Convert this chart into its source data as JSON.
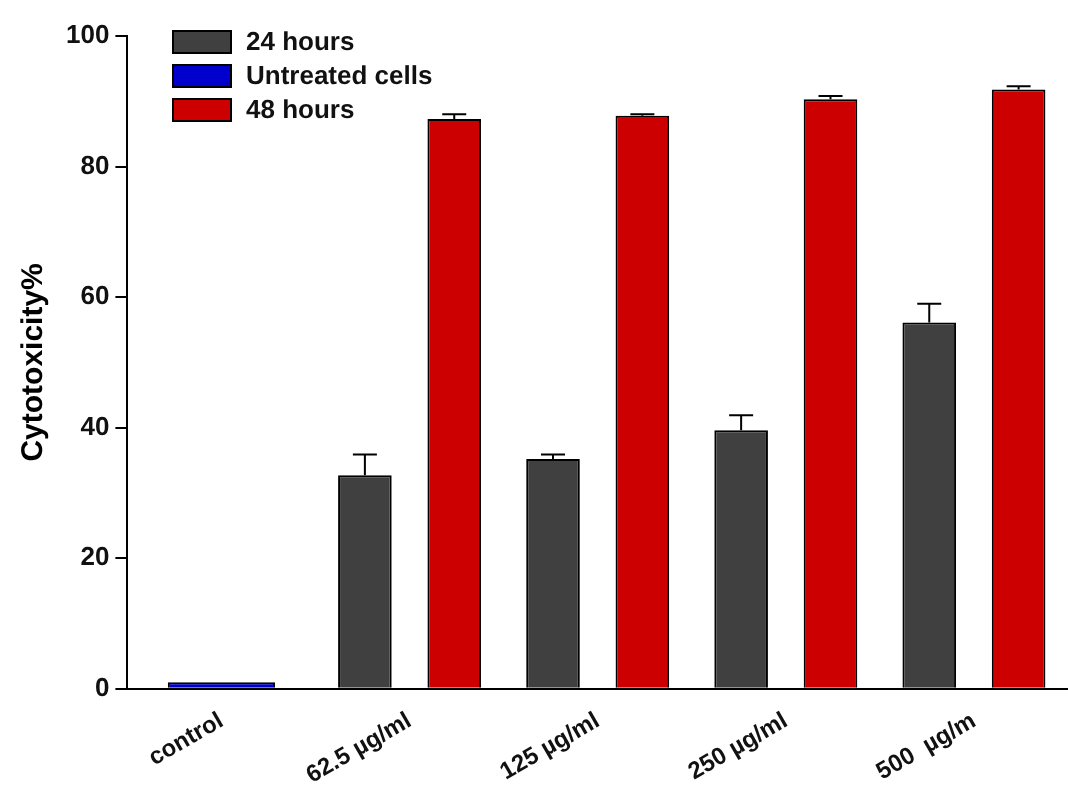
{
  "chart_data": {
    "type": "bar",
    "ylabel": "Cytotoxicity%",
    "categories": [
      "control",
      "62.5 µg/ml",
      "125 µg/ml",
      "250 µg/ml",
      "500  µg/m"
    ],
    "series": [
      {
        "name": "24 hours",
        "color": "#404040",
        "values": [
          null,
          32.7,
          35.2,
          39.6,
          56.1
        ],
        "errors": [
          null,
          [
            32.7,
            35.9
          ],
          [
            35.2,
            35.9
          ],
          [
            39.6,
            41.9
          ],
          [
            56.1,
            59.0
          ]
        ]
      },
      {
        "name": "Untreated cells",
        "color": "#0000cc",
        "values": [
          1.0,
          null,
          null,
          null,
          null
        ]
      },
      {
        "name": "48 hours",
        "color": "#cc0000",
        "values": [
          null,
          87.3,
          87.8,
          90.3,
          91.8
        ],
        "errors": [
          null,
          [
            87.3,
            88.0
          ],
          [
            87.8,
            88.0
          ],
          [
            90.3,
            90.8
          ],
          [
            91.8,
            92.3
          ]
        ]
      }
    ],
    "ylim": [
      0,
      100
    ],
    "yticks": [
      0,
      20,
      40,
      60,
      80,
      100
    ],
    "grid": false,
    "legend": "top left"
  }
}
